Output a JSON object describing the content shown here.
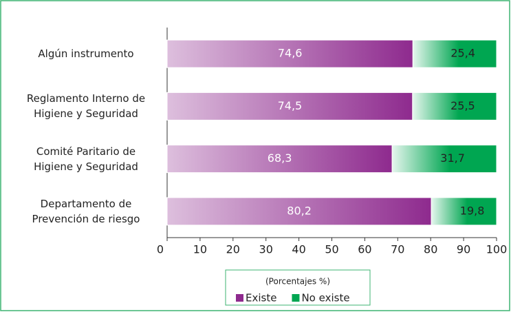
{
  "chart_data": {
    "type": "stacked-bar-horizontal",
    "categories": [
      "Algún instrumento",
      "Reglamento Interno de Higiene y Seguridad",
      "Comité Paritario de Higiene y Seguridad",
      "Departamento de Prevención de riesgo"
    ],
    "series": [
      {
        "name": "Existe",
        "color": "#8e2a8e",
        "values": [
          74.6,
          74.5,
          68.3,
          80.2
        ],
        "value_labels": [
          "74,6",
          "74,5",
          "68,3",
          "80,2"
        ]
      },
      {
        "name": "No existe",
        "color": "#00a651",
        "values": [
          25.4,
          25.5,
          31.7,
          19.8
        ],
        "value_labels": [
          "25,4",
          "25,5",
          "31,7",
          "19,8"
        ]
      }
    ],
    "xlim": [
      0,
      100
    ],
    "xticks": [
      0,
      10,
      20,
      30,
      40,
      50,
      60,
      70,
      80,
      90,
      100
    ],
    "legend_title": "(Porcentajes %)",
    "legend": "bottom"
  }
}
